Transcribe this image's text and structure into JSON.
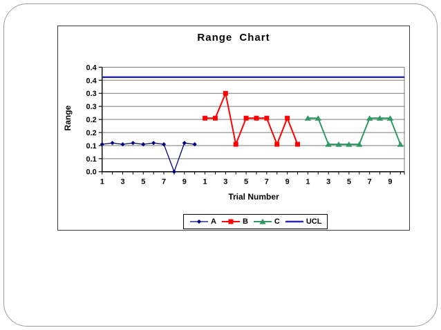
{
  "slide": {
    "background": "#ffffff",
    "border_color": "#9a9a9a"
  },
  "chart_data": {
    "type": "line",
    "title": "Range Chart",
    "xlabel": "Trial Number",
    "ylabel": "Range",
    "ylim": [
      0,
      0.4
    ],
    "y_major_unit": 0.05,
    "y_tick_labels": [
      "0.0",
      "0.1",
      "0.1",
      "0.2",
      "0.2",
      "0.3",
      "0.3",
      "0.4",
      "0.4"
    ],
    "x_tick_labels": [
      "1",
      "3",
      "5",
      "7",
      "9",
      "1",
      "3",
      "5",
      "7",
      "9",
      "1",
      "3",
      "5",
      "7",
      "9"
    ],
    "x_categories": 30,
    "grid": true,
    "legend_position": "bottom",
    "series": [
      {
        "name": "A",
        "color": "#000080",
        "marker": "diamond",
        "marker_size": 5,
        "line_width": 1.3,
        "start_category": 1,
        "values": [
          0.105,
          0.11,
          0.105,
          0.11,
          0.105,
          0.11,
          0.105,
          0.0,
          0.11,
          0.105
        ]
      },
      {
        "name": "B",
        "color": "#ff0000",
        "marker": "square",
        "marker_size": 7,
        "line_width": 2,
        "start_category": 11,
        "values": [
          0.205,
          0.205,
          0.3,
          0.105,
          0.205,
          0.205,
          0.205,
          0.105,
          0.205,
          0.105
        ]
      },
      {
        "name": "C",
        "color": "#2e9962",
        "marker": "triangle",
        "marker_size": 8,
        "line_width": 2,
        "start_category": 21,
        "values": [
          0.205,
          0.205,
          0.105,
          0.105,
          0.105,
          0.105,
          0.205,
          0.205,
          0.205,
          0.105
        ]
      }
    ],
    "ucl": {
      "name": "UCL",
      "color": "#2828b4",
      "value": 0.362,
      "line_width": 2.5
    },
    "colors": {
      "gridline": "#777777",
      "axis": "#000000"
    }
  }
}
